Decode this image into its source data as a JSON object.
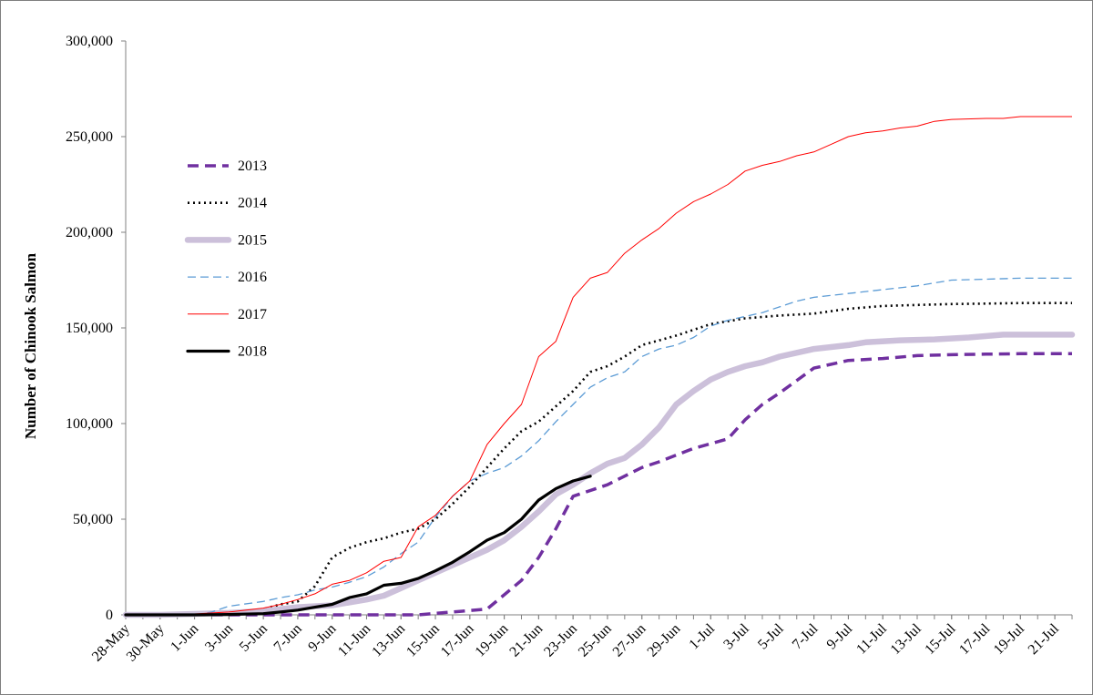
{
  "chart_data": {
    "type": "line",
    "title": "",
    "xlabel": "",
    "ylabel": "Number of Chinook Salmon",
    "ylim": [
      0,
      300000
    ],
    "yticks": [
      0,
      50000,
      100000,
      150000,
      200000,
      250000,
      300000
    ],
    "ytick_labels": [
      "0",
      "50,000",
      "100,000",
      "150,000",
      "200,000",
      "250,000",
      "300,000"
    ],
    "x_start": "28-May",
    "x_end": "22-Jul",
    "xtick_labels": [
      "28-May",
      "30-May",
      "1-Jun",
      "3-Jun",
      "5-Jun",
      "7-Jun",
      "9-Jun",
      "11-Jun",
      "13-Jun",
      "15-Jun",
      "17-Jun",
      "19-Jun",
      "21-Jun",
      "23-Jun",
      "25-Jun",
      "27-Jun",
      "29-Jun",
      "1-Jul",
      "3-Jul",
      "5-Jul",
      "7-Jul",
      "9-Jul",
      "11-Jul",
      "13-Jul",
      "15-Jul",
      "17-Jul",
      "19-Jul",
      "21-Jul"
    ],
    "grid": false,
    "legend_position": "left",
    "series": [
      {
        "name": "2013",
        "color": "#7030a0",
        "style": "dashed-thick",
        "points": [
          [
            "1-Jun",
            0
          ],
          [
            "14-Jun",
            0
          ],
          [
            "18-Jun",
            3000
          ],
          [
            "20-Jun",
            18000
          ],
          [
            "21-Jun",
            30000
          ],
          [
            "22-Jun",
            45000
          ],
          [
            "23-Jun",
            62000
          ],
          [
            "25-Jun",
            68000
          ],
          [
            "27-Jun",
            77000
          ],
          [
            "28-Jun",
            80000
          ],
          [
            "30-Jun",
            87000
          ],
          [
            "2-Jul",
            92000
          ],
          [
            "3-Jul",
            102000
          ],
          [
            "4-Jul",
            110000
          ],
          [
            "5-Jul",
            116000
          ],
          [
            "7-Jul",
            129000
          ],
          [
            "9-Jul",
            133000
          ],
          [
            "11-Jul",
            134000
          ],
          [
            "13-Jul",
            135500
          ],
          [
            "15-Jul",
            136000
          ],
          [
            "17-Jul",
            136300
          ],
          [
            "19-Jul",
            136500
          ],
          [
            "22-Jul",
            136500
          ]
        ]
      },
      {
        "name": "2014",
        "color": "#000000",
        "style": "dotted",
        "points": [
          [
            "1-Jun",
            0
          ],
          [
            "3-Jun",
            500
          ],
          [
            "5-Jun",
            3000
          ],
          [
            "6-Jun",
            5500
          ],
          [
            "7-Jun",
            7000
          ],
          [
            "8-Jun",
            15000
          ],
          [
            "9-Jun",
            30000
          ],
          [
            "10-Jun",
            35000
          ],
          [
            "11-Jun",
            38000
          ],
          [
            "12-Jun",
            40000
          ],
          [
            "13-Jun",
            43000
          ],
          [
            "14-Jun",
            45000
          ],
          [
            "15-Jun",
            50000
          ],
          [
            "16-Jun",
            58000
          ],
          [
            "17-Jun",
            67000
          ],
          [
            "18-Jun",
            77000
          ],
          [
            "19-Jun",
            87000
          ],
          [
            "20-Jun",
            96000
          ],
          [
            "21-Jun",
            101000
          ],
          [
            "22-Jun",
            109000
          ],
          [
            "23-Jun",
            117000
          ],
          [
            "24-Jun",
            127000
          ],
          [
            "25-Jun",
            130000
          ],
          [
            "26-Jun",
            135000
          ],
          [
            "27-Jun",
            141000
          ],
          [
            "29-Jun",
            146000
          ],
          [
            "1-Jul",
            152000
          ],
          [
            "3-Jul",
            155000
          ],
          [
            "5-Jul",
            156500
          ],
          [
            "7-Jul",
            157500
          ],
          [
            "9-Jul",
            160000
          ],
          [
            "11-Jul",
            161500
          ],
          [
            "13-Jul",
            162000
          ],
          [
            "15-Jul",
            162500
          ],
          [
            "17-Jul",
            162700
          ],
          [
            "19-Jul",
            163000
          ],
          [
            "22-Jul",
            163000
          ]
        ]
      },
      {
        "name": "2015",
        "color": "#ccc0da",
        "style": "solid-thick",
        "points": [
          [
            "28-May",
            0
          ],
          [
            "30-May",
            0
          ],
          [
            "1-Jun",
            500
          ],
          [
            "3-Jun",
            1000
          ],
          [
            "5-Jun",
            2000
          ],
          [
            "7-Jun",
            4000
          ],
          [
            "9-Jun",
            5000
          ],
          [
            "11-Jun",
            8000
          ],
          [
            "12-Jun",
            10000
          ],
          [
            "13-Jun",
            14000
          ],
          [
            "14-Jun",
            18000
          ],
          [
            "15-Jun",
            22000
          ],
          [
            "16-Jun",
            26000
          ],
          [
            "17-Jun",
            30000
          ],
          [
            "18-Jun",
            34000
          ],
          [
            "19-Jun",
            39000
          ],
          [
            "20-Jun",
            46000
          ],
          [
            "21-Jun",
            54000
          ],
          [
            "22-Jun",
            63000
          ],
          [
            "23-Jun",
            68000
          ],
          [
            "24-Jun",
            74000
          ],
          [
            "25-Jun",
            79000
          ],
          [
            "26-Jun",
            82000
          ],
          [
            "27-Jun",
            89000
          ],
          [
            "28-Jun",
            98000
          ],
          [
            "29-Jun",
            110000
          ],
          [
            "30-Jun",
            117000
          ],
          [
            "1-Jul",
            123000
          ],
          [
            "2-Jul",
            127000
          ],
          [
            "3-Jul",
            130000
          ],
          [
            "4-Jul",
            132000
          ],
          [
            "5-Jul",
            135000
          ],
          [
            "7-Jul",
            139000
          ],
          [
            "9-Jul",
            141000
          ],
          [
            "10-Jul",
            142500
          ],
          [
            "12-Jul",
            143500
          ],
          [
            "14-Jul",
            144000
          ],
          [
            "16-Jul",
            145000
          ],
          [
            "18-Jul",
            146500
          ],
          [
            "22-Jul",
            146500
          ]
        ]
      },
      {
        "name": "2016",
        "color": "#5b9bd5",
        "style": "dashed",
        "points": [
          [
            "1-Jun",
            0
          ],
          [
            "2-Jun",
            1500
          ],
          [
            "3-Jun",
            4500
          ],
          [
            "5-Jun",
            7000
          ],
          [
            "6-Jun",
            9000
          ],
          [
            "7-Jun",
            10500
          ],
          [
            "8-Jun",
            13000
          ],
          [
            "9-Jun",
            14500
          ],
          [
            "10-Jun",
            17000
          ],
          [
            "11-Jun",
            20000
          ],
          [
            "12-Jun",
            25000
          ],
          [
            "13-Jun",
            32000
          ],
          [
            "14-Jun",
            38000
          ],
          [
            "15-Jun",
            51000
          ],
          [
            "16-Jun",
            62000
          ],
          [
            "17-Jun",
            70000
          ],
          [
            "18-Jun",
            74000
          ],
          [
            "19-Jun",
            77000
          ],
          [
            "20-Jun",
            83000
          ],
          [
            "21-Jun",
            91000
          ],
          [
            "22-Jun",
            101000
          ],
          [
            "23-Jun",
            110000
          ],
          [
            "24-Jun",
            119000
          ],
          [
            "25-Jun",
            124000
          ],
          [
            "26-Jun",
            127000
          ],
          [
            "27-Jun",
            135000
          ],
          [
            "28-Jun",
            139000
          ],
          [
            "29-Jun",
            141000
          ],
          [
            "30-Jun",
            145000
          ],
          [
            "1-Jul",
            151000
          ],
          [
            "2-Jul",
            154000
          ],
          [
            "3-Jul",
            156000
          ],
          [
            "4-Jul",
            158000
          ],
          [
            "5-Jul",
            161000
          ],
          [
            "6-Jul",
            164000
          ],
          [
            "7-Jul",
            166000
          ],
          [
            "9-Jul",
            168000
          ],
          [
            "11-Jul",
            170000
          ],
          [
            "13-Jul",
            172000
          ],
          [
            "14-Jul",
            173500
          ],
          [
            "15-Jul",
            175000
          ],
          [
            "17-Jul",
            175500
          ],
          [
            "19-Jul",
            176000
          ],
          [
            "22-Jul",
            176000
          ]
        ]
      },
      {
        "name": "2017",
        "color": "#ff0000",
        "style": "solid-thin",
        "points": [
          [
            "30-May",
            0
          ],
          [
            "1-Jun",
            500
          ],
          [
            "3-Jun",
            1500
          ],
          [
            "5-Jun",
            3500
          ],
          [
            "6-Jun",
            5500
          ],
          [
            "7-Jun",
            8000
          ],
          [
            "8-Jun",
            11000
          ],
          [
            "9-Jun",
            16000
          ],
          [
            "10-Jun",
            18000
          ],
          [
            "11-Jun",
            22000
          ],
          [
            "12-Jun",
            28000
          ],
          [
            "13-Jun",
            30000
          ],
          [
            "14-Jun",
            46000
          ],
          [
            "15-Jun",
            52000
          ],
          [
            "16-Jun",
            62000
          ],
          [
            "17-Jun",
            70000
          ],
          [
            "18-Jun",
            89000
          ],
          [
            "19-Jun",
            100000
          ],
          [
            "20-Jun",
            110000
          ],
          [
            "21-Jun",
            135000
          ],
          [
            "22-Jun",
            143000
          ],
          [
            "23-Jun",
            166000
          ],
          [
            "24-Jun",
            176000
          ],
          [
            "25-Jun",
            179000
          ],
          [
            "26-Jun",
            189000
          ],
          [
            "27-Jun",
            196000
          ],
          [
            "28-Jun",
            202000
          ],
          [
            "29-Jun",
            210000
          ],
          [
            "30-Jun",
            216000
          ],
          [
            "1-Jul",
            220000
          ],
          [
            "2-Jul",
            225000
          ],
          [
            "3-Jul",
            232000
          ],
          [
            "4-Jul",
            235000
          ],
          [
            "5-Jul",
            237000
          ],
          [
            "6-Jul",
            240000
          ],
          [
            "7-Jul",
            242000
          ],
          [
            "8-Jul",
            246000
          ],
          [
            "9-Jul",
            250000
          ],
          [
            "10-Jul",
            252000
          ],
          [
            "11-Jul",
            253000
          ],
          [
            "12-Jul",
            254500
          ],
          [
            "13-Jul",
            255500
          ],
          [
            "14-Jul",
            258000
          ],
          [
            "15-Jul",
            259000
          ],
          [
            "17-Jul",
            259500
          ],
          [
            "18-Jul",
            259500
          ],
          [
            "19-Jul",
            260500
          ],
          [
            "22-Jul",
            260500
          ]
        ]
      },
      {
        "name": "2018",
        "color": "#000000",
        "style": "solid-thick",
        "points": [
          [
            "28-May",
            0
          ],
          [
            "1-Jun",
            0
          ],
          [
            "3-Jun",
            200
          ],
          [
            "5-Jun",
            600
          ],
          [
            "6-Jun",
            1500
          ],
          [
            "7-Jun",
            2500
          ],
          [
            "8-Jun",
            4000
          ],
          [
            "9-Jun",
            5500
          ],
          [
            "10-Jun",
            9000
          ],
          [
            "11-Jun",
            11000
          ],
          [
            "12-Jun",
            15500
          ],
          [
            "13-Jun",
            16500
          ],
          [
            "14-Jun",
            19000
          ],
          [
            "15-Jun",
            23000
          ],
          [
            "16-Jun",
            27500
          ],
          [
            "17-Jun",
            33000
          ],
          [
            "18-Jun",
            39000
          ],
          [
            "19-Jun",
            43000
          ],
          [
            "20-Jun",
            50000
          ],
          [
            "21-Jun",
            60000
          ],
          [
            "22-Jun",
            66000
          ],
          [
            "23-Jun",
            70000
          ],
          [
            "24-Jun",
            72500
          ]
        ]
      }
    ]
  }
}
